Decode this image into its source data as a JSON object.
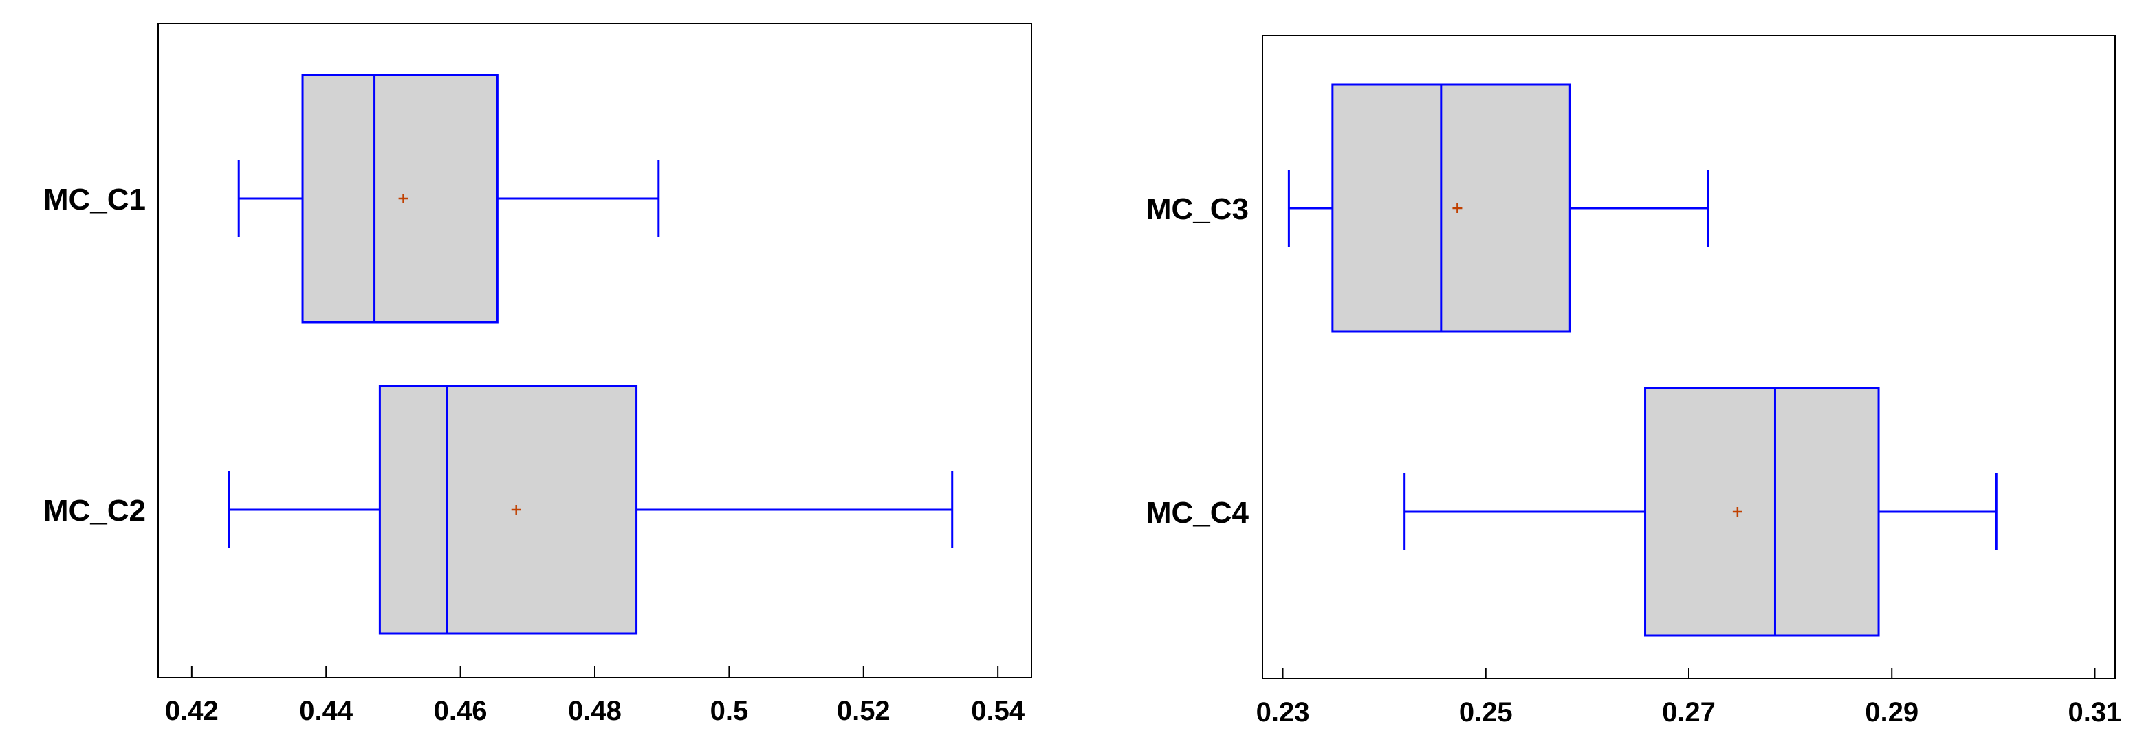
{
  "colors": {
    "box_stroke": "#0000ff",
    "box_fill": "#d3d3d3",
    "mean_marker": "#c04000",
    "axis": "#000000"
  },
  "chart_data": [
    {
      "type": "boxplot",
      "orientation": "horizontal",
      "title": "",
      "xlabel": "",
      "ylabel": "",
      "xlim": [
        0.415,
        0.545
      ],
      "xticks": [
        0.42,
        0.44,
        0.46,
        0.48,
        0.5,
        0.52,
        0.54
      ],
      "xtick_labels": [
        "0.42",
        "0.44",
        "0.46",
        "0.48",
        "0.5",
        "0.52",
        "0.54"
      ],
      "series": [
        {
          "name": "MC_C1",
          "min": 0.427,
          "q1": 0.4365,
          "median": 0.4472,
          "q3": 0.4655,
          "max": 0.4895,
          "mean": 0.4515
        },
        {
          "name": "MC_C2",
          "min": 0.4255,
          "q1": 0.448,
          "median": 0.458,
          "q3": 0.4862,
          "max": 0.5332,
          "mean": 0.4683
        }
      ]
    },
    {
      "type": "boxplot",
      "orientation": "horizontal",
      "title": "",
      "xlabel": "",
      "ylabel": "",
      "xlim": [
        0.228,
        0.312
      ],
      "xticks": [
        0.23,
        0.25,
        0.27,
        0.29,
        0.31
      ],
      "xtick_labels": [
        "0.23",
        "0.25",
        "0.27",
        "0.29",
        "0.31"
      ],
      "series": [
        {
          "name": "MC_C3",
          "min": 0.2306,
          "q1": 0.2349,
          "median": 0.2456,
          "q3": 0.2583,
          "max": 0.2719,
          "mean": 0.2472
        },
        {
          "name": "MC_C4",
          "min": 0.242,
          "q1": 0.2657,
          "median": 0.2785,
          "q3": 0.2887,
          "max": 0.3003,
          "mean": 0.2748
        }
      ]
    }
  ]
}
